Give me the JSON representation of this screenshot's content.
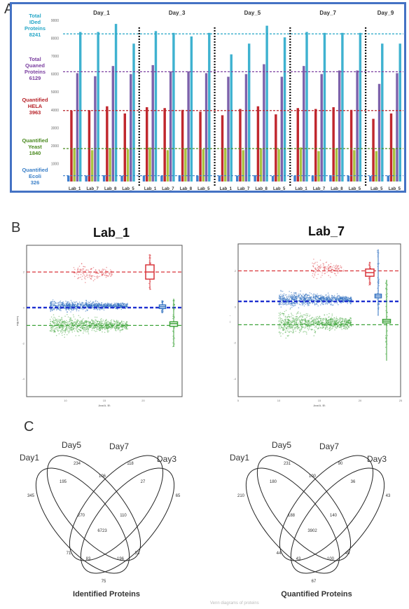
{
  "panels": {
    "a": {
      "letter": "A",
      "days": [
        "Day_1",
        "Day_3",
        "Day_5",
        "Day_7",
        "Day_9"
      ],
      "lab_labels": [
        "Lab_1",
        "Lab_7",
        "Lab_8",
        "Lab_5",
        "Lab_1",
        "Lab_7",
        "Lab_8",
        "Lab_5",
        "Lab_1",
        "Lab_7",
        "Lab_8",
        "Lab_5",
        "Lab_1",
        "Lab_7",
        "Lab_8",
        "Lab_5",
        "Lab_5",
        "Lab_5"
      ],
      "side_labels": [
        {
          "lines": [
            "Total",
            "IDed",
            "Proteins",
            "8241"
          ],
          "color": "#26a7c7"
        },
        {
          "lines": [
            "Total",
            "Quaned",
            "Proteins",
            "6129"
          ],
          "color": "#7b3fa0"
        },
        {
          "lines": [
            "Quantified",
            "HELA",
            "3963"
          ],
          "color": "#b8242a"
        },
        {
          "lines": [
            "Quantified",
            "Yeast",
            "1840"
          ],
          "color": "#4a8a1f"
        },
        {
          "lines": [
            "Quantified",
            "Ecoli",
            "326"
          ],
          "color": "#3a7fc7"
        }
      ],
      "reference_levels": [
        {
          "value": 8241,
          "color": "#26a7c7"
        },
        {
          "value": 6129,
          "color": "#7b3fa0"
        },
        {
          "value": 3963,
          "color": "#b8242a"
        },
        {
          "value": 1840,
          "color": "#4a8a1f"
        },
        {
          "value": 326,
          "color": "#3a7fc7"
        }
      ],
      "colors": {
        "ecoli": "#3f7fcf",
        "hela": "#c0272d",
        "yeast": "#a9c23f",
        "quaned": "#7d62ab",
        "ided": "#3fb2d0",
        "frame": "#4472c4"
      }
    },
    "b": {
      "letter": "B",
      "plots": [
        {
          "title": "Lab_1",
          "ylabel": "log(A/B)",
          "xlabel": "Avg(A, B)",
          "x_ticks": [
            "10",
            "15",
            "20"
          ],
          "y_ticks": [
            "2",
            "0",
            "-2",
            "-4"
          ]
        },
        {
          "title": "Lab_7",
          "ylabel": "log(A/B)",
          "xlabel": "Avg(A, B)",
          "x_ticks": [
            "5",
            "10",
            "15",
            "20",
            "25"
          ],
          "y_ticks": [
            "2",
            "0",
            "-2",
            "-4"
          ]
        }
      ],
      "colors": {
        "hela": "#d9353b",
        "ecoli": "#2f6fc0",
        "yeast": "#3ea33a",
        "ref_blue": "#1d2fd0"
      }
    },
    "c": {
      "letter": "C",
      "diagrams": [
        {
          "set_names": [
            "Day1",
            "Day5",
            "Day7",
            "Day3"
          ],
          "caption": "Identified Proteins",
          "region_counts": [
            "345",
            "234",
            "118",
            "65",
            "195",
            "106",
            "27",
            "270",
            "110",
            "6723",
            "71",
            "83",
            "196",
            "53",
            "75"
          ]
        },
        {
          "set_names": [
            "Day1",
            "Day5",
            "Day7",
            "Day3"
          ],
          "caption": "Quantified Proteins",
          "region_counts": [
            "210",
            "231",
            "90",
            "43",
            "180",
            "100",
            "36",
            "188",
            "140",
            "3902",
            "44",
            "43",
            "100",
            "49",
            "67"
          ]
        }
      ]
    },
    "footer_caption": "Venn diagrams of proteins"
  },
  "chart_data": [
    {
      "type": "bar",
      "title": "",
      "groups": [
        "Day_1",
        "Day_3",
        "Day_5",
        "Day_7",
        "Day_9"
      ],
      "categories": [
        "Lab_1",
        "Lab_7",
        "Lab_8",
        "Lab_5",
        "Lab_1",
        "Lab_7",
        "Lab_8",
        "Lab_5",
        "Lab_1",
        "Lab_7",
        "Lab_8",
        "Lab_5",
        "Lab_1",
        "Lab_7",
        "Lab_8",
        "Lab_5",
        "Lab_5",
        "Lab_5"
      ],
      "ylim": [
        0,
        9000
      ],
      "y_ticks": [
        1000,
        2000,
        3000,
        4000,
        5000,
        6000,
        7000,
        8000,
        9000
      ],
      "series": [
        {
          "values": [
            330,
            330,
            350,
            320,
            330,
            330,
            350,
            320,
            330,
            330,
            350,
            310,
            330,
            330,
            350,
            320,
            310,
            330
          ]
        },
        {
          "values": [
            3960,
            3980,
            4200,
            3800,
            4150,
            4100,
            4000,
            3900,
            3700,
            4050,
            4200,
            3750,
            4100,
            4050,
            4150,
            4000,
            3500,
            3800
          ]
        },
        {
          "values": [
            1840,
            1750,
            1850,
            1800,
            1900,
            1750,
            1850,
            1800,
            1850,
            1750,
            1850,
            1800,
            1900,
            1700,
            1850,
            1750,
            1700,
            1850
          ]
        },
        {
          "values": [
            6050,
            5880,
            6450,
            6000,
            6500,
            6150,
            6150,
            6050,
            5850,
            6000,
            6550,
            5850,
            6450,
            6000,
            6200,
            6200,
            5450,
            6050
          ]
        },
        {
          "values": [
            8350,
            8350,
            8800,
            7700,
            8400,
            8300,
            8100,
            8300,
            7100,
            7700,
            8700,
            8050,
            8350,
            8300,
            8300,
            8300,
            7700,
            7700
          ]
        }
      ]
    },
    {
      "type": "scatter",
      "title": "Lab_1",
      "xlabel": "Avg(A, B)",
      "ylabel": "log(A/B)",
      "xlim": [
        5,
        25
      ],
      "ylim": [
        -5,
        3.5
      ],
      "reference_lines": [
        {
          "y": 2,
          "color": "#d9353b"
        },
        {
          "y": 0,
          "color": "#1d2fd0"
        },
        {
          "y": -1,
          "color": "#3ea33a"
        }
      ],
      "series": [
        {
          "center_y": 1.9,
          "x_range": [
            11,
            16
          ],
          "spread": 0.6
        },
        {
          "center_y": 0.1,
          "x_range": [
            8,
            18
          ],
          "spread": 0.3
        },
        {
          "center_y": -1.0,
          "x_range": [
            8,
            18
          ],
          "spread": 0.5
        }
      ],
      "boxplots": [
        {
          "median": 2.0,
          "q1": 1.6,
          "q3": 2.4,
          "whisker_low": 1.0,
          "whisker_high": 3.0
        },
        {
          "median": 0.05,
          "q1": -0.05,
          "q3": 0.15,
          "whisker_low": -0.3,
          "whisker_high": 0.4
        },
        {
          "median": -0.9,
          "q1": -1.05,
          "q3": -0.8,
          "whisker_low": -2.2,
          "whisker_high": 0.5
        }
      ]
    },
    {
      "type": "scatter",
      "title": "Lab_7",
      "xlabel": "Avg(A, B)",
      "ylabel": "log(A/B)",
      "xlim": [
        5,
        25
      ],
      "ylim": [
        -5,
        3.5
      ],
      "reference_lines": [
        {
          "y": 2,
          "color": "#d9353b"
        },
        {
          "y": 0.3,
          "color": "#1d2fd0"
        },
        {
          "y": -1,
          "color": "#3ea33a"
        }
      ],
      "series": [
        {
          "center_y": 2.1,
          "x_range": [
            14,
            18
          ],
          "spread": 0.5
        },
        {
          "center_y": 0.4,
          "x_range": [
            10,
            19
          ],
          "spread": 0.4
        },
        {
          "center_y": -0.9,
          "x_range": [
            10,
            19
          ],
          "spread": 0.6
        }
      ],
      "boxplots": [
        {
          "median": 1.9,
          "q1": 1.7,
          "q3": 2.1,
          "whisker_low": 1.2,
          "whisker_high": 2.5
        },
        {
          "median": 0.6,
          "q1": 0.5,
          "q3": 0.7,
          "whisker_low": -0.5,
          "whisker_high": 3.2
        },
        {
          "median": -0.8,
          "q1": -0.9,
          "q3": -0.7,
          "whisker_low": -3.0,
          "whisker_high": 1.5
        }
      ]
    }
  ]
}
